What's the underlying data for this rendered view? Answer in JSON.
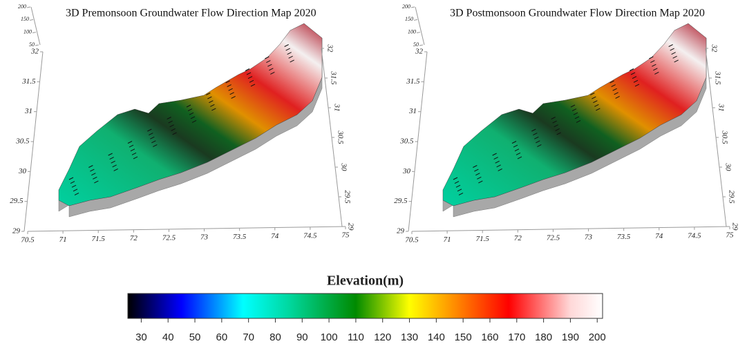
{
  "chart_data": [
    {
      "type": "surface3d",
      "title": "3D Premonsoon Groundwater Flow Direction Map 2020",
      "xlim": [
        70.5,
        75
      ],
      "xticks": [
        70.5,
        71,
        71.5,
        72,
        72.5,
        73,
        73.5,
        74,
        74.5,
        75
      ],
      "ylim": [
        29,
        32
      ],
      "yticks": [
        29,
        29.5,
        30,
        30.5,
        31,
        31.5,
        32
      ],
      "zlim": [
        50,
        200
      ],
      "zticks": [
        50,
        100,
        150,
        200
      ]
    },
    {
      "type": "surface3d",
      "title": "3D Postmonsoon Groundwater Flow Direction Map 2020",
      "xlim": [
        70.5,
        75
      ],
      "xticks": [
        70.5,
        71,
        71.5,
        72,
        72.5,
        73,
        73.5,
        74,
        74.5,
        75
      ],
      "ylim": [
        29,
        32
      ],
      "yticks": [
        29,
        29.5,
        30,
        30.5,
        31,
        31.5,
        32
      ],
      "zlim": [
        50,
        200
      ],
      "zticks": [
        50,
        100,
        150,
        200
      ]
    }
  ],
  "colorbar": {
    "title": "Elevation(m)",
    "lim": [
      25,
      202
    ],
    "ticks": [
      30,
      40,
      50,
      60,
      70,
      80,
      90,
      100,
      110,
      120,
      130,
      140,
      150,
      160,
      170,
      180,
      190,
      200
    ],
    "stops": [
      {
        "value": 25,
        "color": "#000000"
      },
      {
        "value": 45,
        "color": "#0000ff"
      },
      {
        "value": 68,
        "color": "#00ffff"
      },
      {
        "value": 85,
        "color": "#00d8a0"
      },
      {
        "value": 110,
        "color": "#008a00"
      },
      {
        "value": 130,
        "color": "#ffff00"
      },
      {
        "value": 145,
        "color": "#ff9900"
      },
      {
        "value": 167,
        "color": "#ff0000"
      },
      {
        "value": 190,
        "color": "#ffd8d8"
      },
      {
        "value": 202,
        "color": "#ffffff"
      }
    ]
  }
}
